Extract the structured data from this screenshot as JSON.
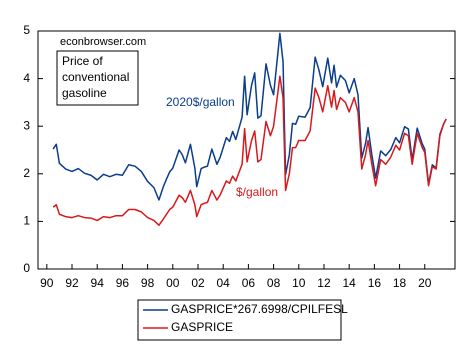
{
  "chart_data": {
    "type": "line",
    "source": "econbrowser.com",
    "note": [
      "Price of",
      "conventional",
      "gasoline"
    ],
    "annotations": [
      "2020$/gallon",
      "$/gallon"
    ],
    "x": [
      1990.5,
      1990.75,
      1991.0,
      1991.5,
      1992.0,
      1992.5,
      1993.0,
      1993.5,
      1994.0,
      1994.5,
      1995.0,
      1995.5,
      1996.0,
      1996.5,
      1997.0,
      1997.5,
      1998.0,
      1998.5,
      1998.9,
      1999.25,
      1999.5,
      1999.75,
      2000.0,
      2000.5,
      2000.75,
      2001.0,
      2001.4,
      2001.75,
      2001.9,
      2002.25,
      2002.5,
      2002.75,
      2003.1,
      2003.5,
      2003.75,
      2004.25,
      2004.5,
      2004.75,
      2005.0,
      2005.5,
      2005.7,
      2005.9,
      2006.25,
      2006.5,
      2006.75,
      2007.0,
      2007.4,
      2007.75,
      2008.0,
      2008.5,
      2008.75,
      2008.95,
      2009.25,
      2009.5,
      2009.75,
      2010.0,
      2010.5,
      2010.9,
      2011.3,
      2011.6,
      2011.9,
      2012.3,
      2012.6,
      2012.8,
      2013.0,
      2013.3,
      2013.7,
      2014.0,
      2014.4,
      2014.7,
      2015.0,
      2015.3,
      2015.5,
      2015.8,
      2016.1,
      2016.5,
      2016.9,
      2017.3,
      2017.7,
      2018.0,
      2018.4,
      2018.7,
      2019.0,
      2019.4,
      2019.8,
      2020.0,
      2020.3,
      2020.6,
      2020.9,
      2021.2,
      2021.5,
      2021.7
    ],
    "series": [
      {
        "name": "GASPRICE*267.6998/CPILFESL",
        "color": "#0b3d8c",
        "values": [
          2.52,
          2.62,
          2.22,
          2.1,
          2.05,
          2.11,
          2.01,
          1.97,
          1.87,
          1.99,
          1.94,
          1.99,
          1.97,
          2.19,
          2.16,
          2.05,
          1.84,
          1.71,
          1.45,
          1.73,
          1.89,
          2.04,
          2.12,
          2.5,
          2.4,
          2.23,
          2.62,
          2.12,
          1.73,
          2.11,
          2.14,
          2.16,
          2.52,
          2.2,
          2.34,
          2.76,
          2.68,
          2.89,
          2.72,
          3.19,
          4.05,
          3.24,
          3.86,
          4.12,
          3.17,
          3.22,
          4.31,
          3.86,
          3.66,
          4.95,
          4.36,
          1.98,
          2.4,
          3.06,
          3.04,
          3.21,
          3.19,
          3.39,
          4.45,
          4.18,
          3.83,
          4.43,
          3.91,
          4.28,
          3.82,
          4.07,
          3.96,
          3.7,
          4.0,
          3.66,
          2.33,
          2.64,
          2.97,
          2.4,
          1.91,
          2.48,
          2.38,
          2.51,
          2.76,
          2.65,
          2.99,
          2.94,
          2.29,
          2.96,
          2.63,
          2.52,
          1.79,
          2.19,
          2.12,
          2.83,
          3.05,
          3.15
        ]
      },
      {
        "name": "GASPRICE",
        "color": "#d7191c",
        "values": [
          1.3,
          1.35,
          1.15,
          1.1,
          1.08,
          1.12,
          1.08,
          1.07,
          1.02,
          1.1,
          1.08,
          1.12,
          1.12,
          1.25,
          1.25,
          1.2,
          1.08,
          1.02,
          0.92,
          1.05,
          1.15,
          1.25,
          1.3,
          1.55,
          1.5,
          1.4,
          1.65,
          1.35,
          1.1,
          1.35,
          1.38,
          1.4,
          1.65,
          1.45,
          1.55,
          1.85,
          1.8,
          1.95,
          1.85,
          2.2,
          2.95,
          2.25,
          2.7,
          2.9,
          2.25,
          2.3,
          3.1,
          2.8,
          3.0,
          4.05,
          3.6,
          1.65,
          2.0,
          2.55,
          2.55,
          2.7,
          2.7,
          2.9,
          3.8,
          3.6,
          3.3,
          3.85,
          3.4,
          3.75,
          3.35,
          3.6,
          3.5,
          3.3,
          3.6,
          3.3,
          2.1,
          2.4,
          2.7,
          2.2,
          1.75,
          2.3,
          2.2,
          2.35,
          2.6,
          2.5,
          2.85,
          2.8,
          2.2,
          2.85,
          2.55,
          2.45,
          1.75,
          2.15,
          2.1,
          2.8,
          3.05,
          3.15
        ]
      }
    ],
    "xlim": [
      1989.3,
      2022.4
    ],
    "xticks": [
      {
        "value": 1990,
        "label": "90"
      },
      {
        "value": 1992,
        "label": "92"
      },
      {
        "value": 1994,
        "label": "94"
      },
      {
        "value": 1996,
        "label": "96"
      },
      {
        "value": 1998,
        "label": "98"
      },
      {
        "value": 2000,
        "label": "00"
      },
      {
        "value": 2002,
        "label": "02"
      },
      {
        "value": 2004,
        "label": "04"
      },
      {
        "value": 2006,
        "label": "06"
      },
      {
        "value": 2008,
        "label": "08"
      },
      {
        "value": 2010,
        "label": "10"
      },
      {
        "value": 2012,
        "label": "12"
      },
      {
        "value": 2014,
        "label": "14"
      },
      {
        "value": 2016,
        "label": "16"
      },
      {
        "value": 2018,
        "label": "18"
      },
      {
        "value": 2020,
        "label": "20"
      }
    ],
    "ylim": [
      0,
      5
    ],
    "yticks": [
      0,
      1,
      2,
      3,
      4,
      5
    ],
    "grid": false
  }
}
